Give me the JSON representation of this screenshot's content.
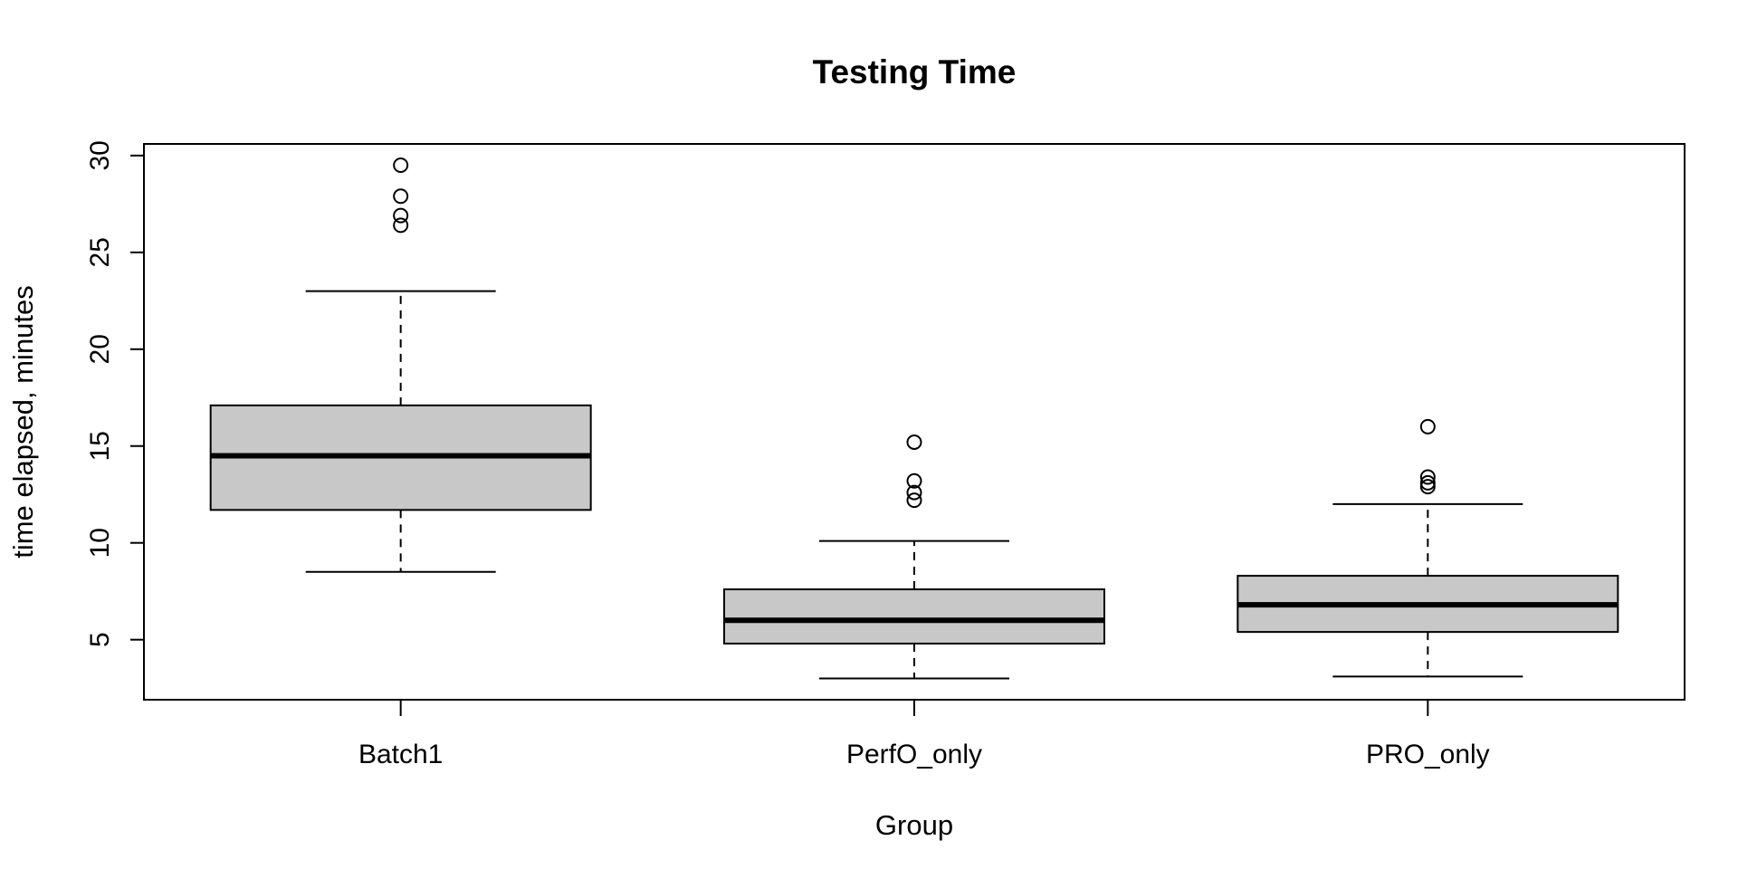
{
  "chart_data": {
    "type": "boxplot",
    "title": "Testing Time",
    "xlabel": "Group",
    "ylabel": "time elapsed, minutes",
    "ylim": [
      1.9,
      30.6
    ],
    "yticks": [
      5,
      10,
      15,
      20,
      25,
      30
    ],
    "grid": false,
    "box_fill": "#c8c8c8",
    "line_color": "#000000",
    "categories": [
      "Batch1",
      "PerfO_only",
      "PRO_only"
    ],
    "boxes": [
      {
        "group": "Batch1",
        "whisker_low": 8.5,
        "q1": 11.7,
        "median": 14.5,
        "q3": 17.1,
        "whisker_high": 23.0,
        "outliers": [
          26.4,
          26.9,
          27.9,
          29.5
        ]
      },
      {
        "group": "PerfO_only",
        "whisker_low": 3.0,
        "q1": 4.8,
        "median": 6.0,
        "q3": 7.6,
        "whisker_high": 10.1,
        "outliers": [
          12.2,
          12.6,
          13.2,
          15.2
        ]
      },
      {
        "group": "PRO_only",
        "whisker_low": 3.1,
        "q1": 5.4,
        "median": 6.8,
        "q3": 8.3,
        "whisker_high": 12.0,
        "outliers": [
          12.9,
          13.1,
          13.4,
          16.0
        ]
      }
    ]
  }
}
